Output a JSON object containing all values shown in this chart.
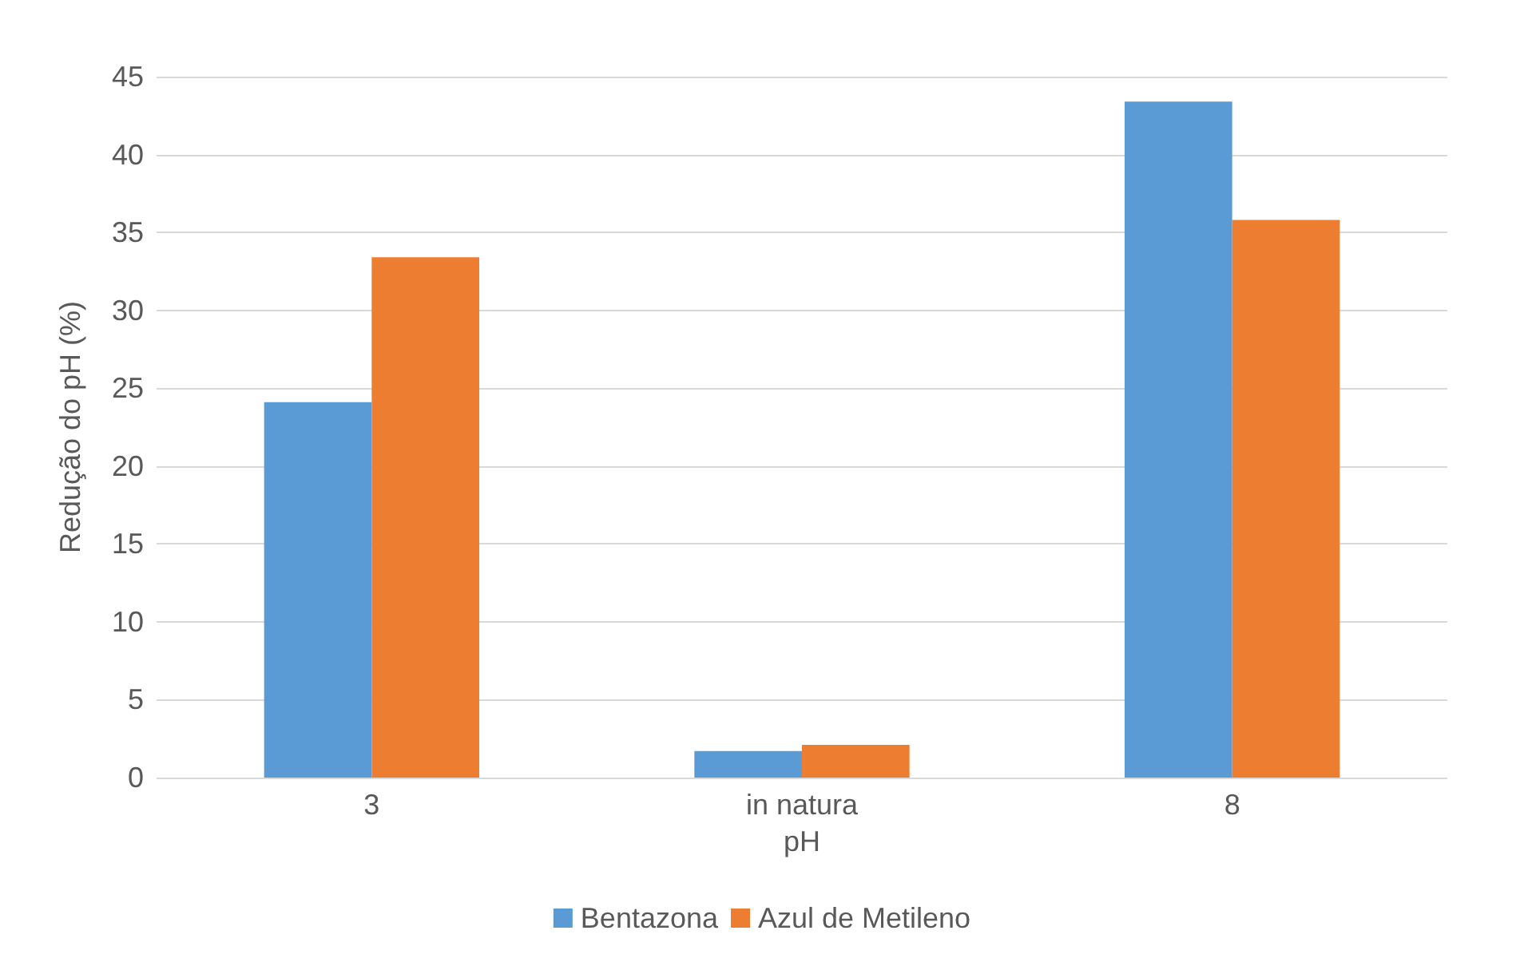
{
  "chart_data": {
    "type": "bar",
    "xlabel": "pH",
    "ylabel": "Redução do pH (%)",
    "categories": [
      "3",
      "in natura",
      "8"
    ],
    "series": [
      {
        "name": "Bentazona",
        "color": "#5b9bd5",
        "values": [
          24.1,
          1.7,
          43.4
        ]
      },
      {
        "name": "Azul de Metileno",
        "color": "#ed7d31",
        "values": [
          33.4,
          2.1,
          35.8
        ]
      }
    ],
    "ylim": [
      0,
      45
    ],
    "yticks": [
      0,
      5,
      10,
      15,
      20,
      25,
      30,
      35,
      40,
      45
    ],
    "grid": "y",
    "legend": "bottom"
  }
}
